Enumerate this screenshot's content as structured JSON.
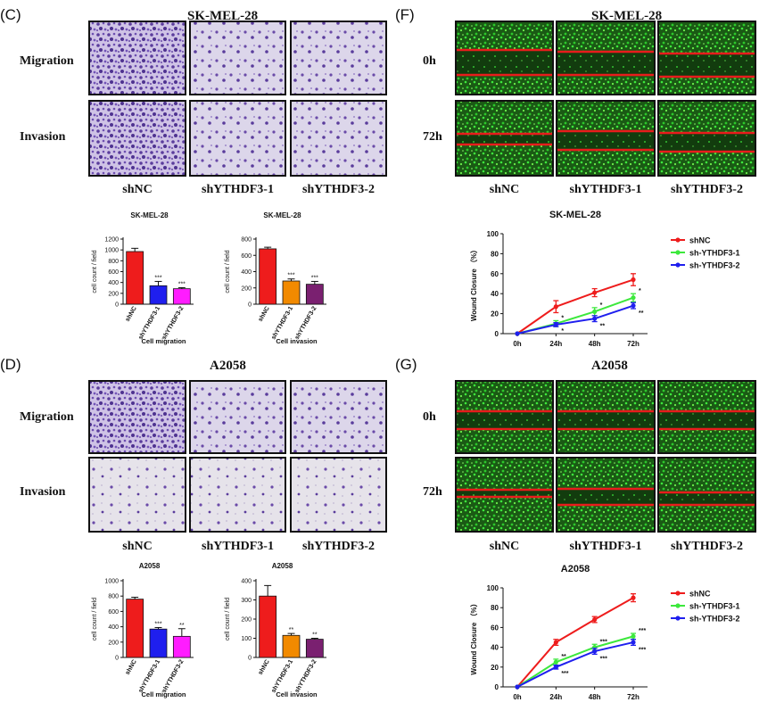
{
  "panels": {
    "C": {
      "label": "(C)",
      "title": "SK-MEL-28",
      "row_labels": [
        "Migration",
        "Invasion"
      ],
      "col_labels": [
        "shNC",
        "shYTHDF3-1",
        "shYTHDF3-2"
      ]
    },
    "D": {
      "label": "(D)",
      "title": "A2058",
      "row_labels": [
        "Migration",
        "Invasion"
      ],
      "col_labels": [
        "shNC",
        "shYTHDF3-1",
        "shYTHDF3-2"
      ]
    },
    "F": {
      "label": "(F)",
      "title": "SK-MEL-28",
      "row_labels": [
        "0h",
        "72h"
      ],
      "col_labels": [
        "shNC",
        "shYTHDF3-1",
        "shYTHDF3-2"
      ]
    },
    "G": {
      "label": "(G)",
      "title": "A2058",
      "row_labels": [
        "0h",
        "72h"
      ],
      "col_labels": [
        "shNC",
        "shYTHDF3-1",
        "shYTHDF3-2"
      ]
    }
  },
  "colors": {
    "red": "#ee1c1c",
    "blue": "#1f1fee",
    "green": "#3ce83c",
    "orange": "#f28a00",
    "magenta": "#ff1cff",
    "purple": "#7a2070",
    "stain": "#6a4aa8",
    "scratch": "#e81c1c"
  },
  "chart_data": [
    {
      "type": "bar",
      "title": "SK-MEL-28",
      "ylabel": "cell count / field",
      "xlabel": "Cell migration",
      "ylim": [
        0,
        1200
      ],
      "yticks": [
        0,
        200,
        400,
        600,
        800,
        1000,
        1200
      ],
      "categories": [
        "shNC",
        "shYTHDF3-1",
        "shYTHDF3-2"
      ],
      "values": [
        970,
        340,
        285
      ],
      "errors": [
        60,
        80,
        20
      ],
      "sig": [
        "",
        "***",
        "***"
      ],
      "colors": [
        "#ee1c1c",
        "#1f1fee",
        "#ff1cff"
      ]
    },
    {
      "type": "bar",
      "title": "SK-MEL-28",
      "ylabel": "cell count / field",
      "xlabel": "Cell invasion",
      "ylim": [
        0,
        800
      ],
      "yticks": [
        0,
        200,
        400,
        600,
        800
      ],
      "categories": [
        "shNC",
        "shYTHDF3-1",
        "shYTHDF3-2"
      ],
      "values": [
        680,
        285,
        245
      ],
      "errors": [
        20,
        25,
        35
      ],
      "sig": [
        "",
        "***",
        "***"
      ],
      "colors": [
        "#ee1c1c",
        "#f28a00",
        "#7a2070"
      ]
    },
    {
      "type": "bar",
      "title": "A2058",
      "ylabel": "cell count / field",
      "xlabel": "Cell migration",
      "ylim": [
        0,
        1000
      ],
      "yticks": [
        0,
        200,
        400,
        600,
        800,
        1000
      ],
      "categories": [
        "shNC",
        "shYTHDF3-1",
        "shYTHDF3-2"
      ],
      "values": [
        760,
        370,
        275
      ],
      "errors": [
        25,
        20,
        100
      ],
      "sig": [
        "",
        "***",
        "**"
      ],
      "colors": [
        "#ee1c1c",
        "#1f1fee",
        "#ff1cff"
      ]
    },
    {
      "type": "bar",
      "title": "A2058",
      "ylabel": "cell count / field",
      "xlabel": "Cell invasion",
      "ylim": [
        0,
        400
      ],
      "yticks": [
        0,
        100,
        200,
        300,
        400
      ],
      "categories": [
        "shNC",
        "shYTHDF3-1",
        "shYTHDF3-2"
      ],
      "values": [
        320,
        115,
        95
      ],
      "errors": [
        55,
        10,
        5
      ],
      "sig": [
        "",
        "**",
        "**"
      ],
      "colors": [
        "#ee1c1c",
        "#f28a00",
        "#7a2070"
      ]
    },
    {
      "type": "line",
      "title": "SK-MEL-28",
      "ylabel": "Wound Closure （%）",
      "xlabel": "",
      "ylim": [
        0,
        100
      ],
      "yticks": [
        0,
        20,
        40,
        60,
        80,
        100
      ],
      "x": [
        "0h",
        "24h",
        "48h",
        "72h"
      ],
      "legend": "top-right",
      "series": [
        {
          "name": "shNC",
          "color": "#ee1c1c",
          "values": [
            0,
            27,
            41,
            54
          ],
          "errors": [
            0,
            6,
            4,
            6
          ],
          "sig": [
            "",
            "",
            "",
            ""
          ]
        },
        {
          "name": "sh-YTHDF3-1",
          "color": "#3ce83c",
          "values": [
            0,
            10,
            22,
            36
          ],
          "errors": [
            0,
            3,
            4,
            4
          ],
          "sig": [
            "",
            "*",
            "*",
            "*"
          ]
        },
        {
          "name": "sh-YTHDF3-2",
          "color": "#1f1fee",
          "values": [
            0,
            9,
            15,
            28
          ],
          "errors": [
            0,
            2,
            3,
            3
          ],
          "sig": [
            "",
            "*",
            "**",
            "**"
          ]
        }
      ]
    },
    {
      "type": "line",
      "title": "A2058",
      "ylabel": "Wound Closure （%）",
      "xlabel": "",
      "ylim": [
        0,
        100
      ],
      "yticks": [
        0,
        20,
        40,
        60,
        80,
        100
      ],
      "x": [
        "0h",
        "24h",
        "48h",
        "72h"
      ],
      "legend": "top-right",
      "series": [
        {
          "name": "shNC",
          "color": "#ee1c1c",
          "values": [
            0,
            45,
            68,
            90
          ],
          "errors": [
            0,
            3,
            3,
            4
          ],
          "sig": [
            "",
            "",
            "",
            ""
          ]
        },
        {
          "name": "sh-YTHDF3-1",
          "color": "#3ce83c",
          "values": [
            0,
            25,
            40,
            51
          ],
          "errors": [
            0,
            3,
            3,
            3
          ],
          "sig": [
            "",
            "**",
            "***",
            "***"
          ]
        },
        {
          "name": "sh-YTHDF3-2",
          "color": "#1f1fee",
          "values": [
            0,
            20,
            36,
            45
          ],
          "errors": [
            0,
            2,
            3,
            3
          ],
          "sig": [
            "",
            "***",
            "***",
            "***"
          ]
        }
      ]
    }
  ]
}
